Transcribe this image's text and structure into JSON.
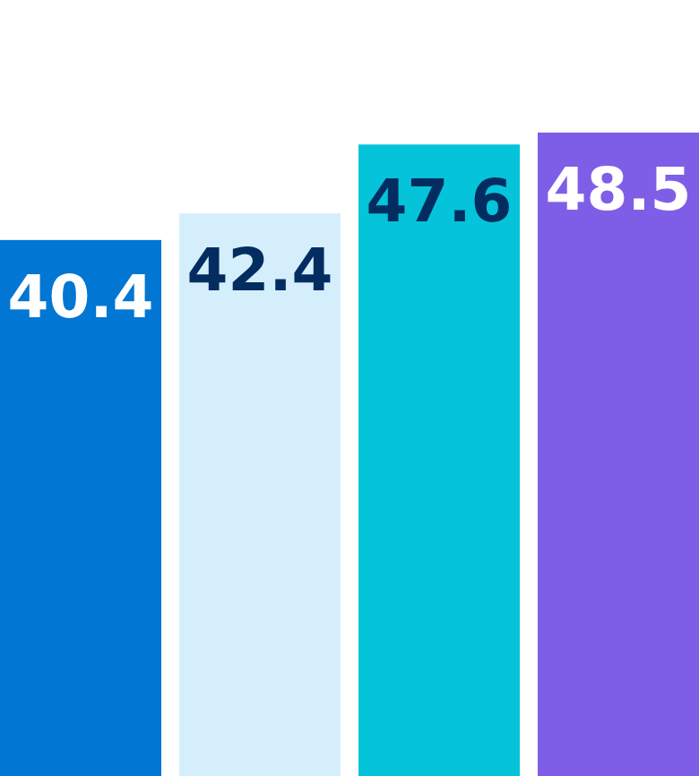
{
  "chart_data": {
    "type": "bar",
    "categories": [
      null,
      null,
      null,
      null
    ],
    "values": [
      40.4,
      42.4,
      47.6,
      48.5
    ],
    "colors": [
      "#0176d3",
      "#d4effb",
      "#05c3d8",
      "#7f5ee7"
    ],
    "data_labels": true
  }
}
